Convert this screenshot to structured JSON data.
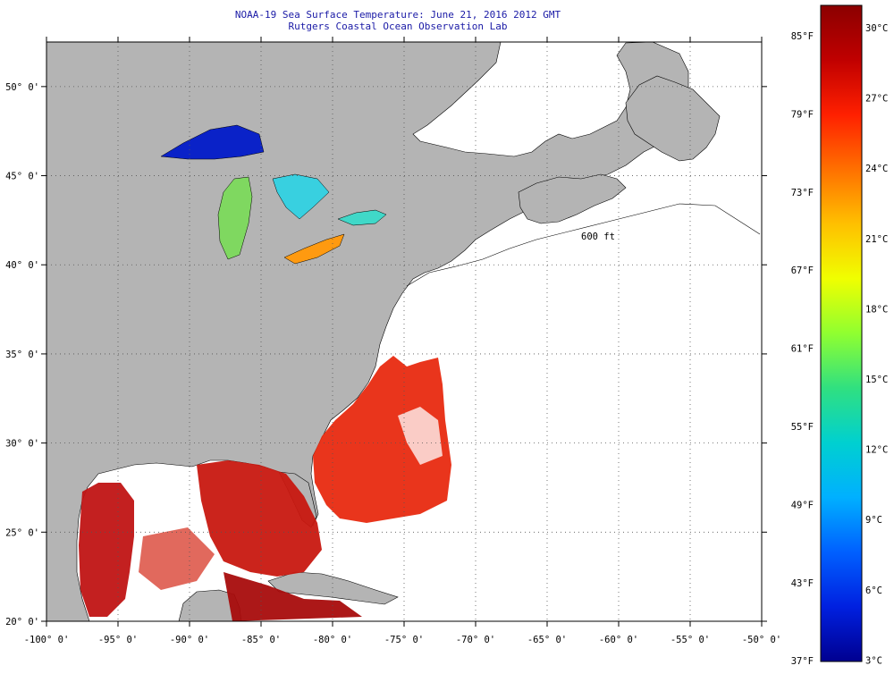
{
  "header": {
    "title_line1": "NOAA-19 Sea Surface Temperature:  June 21, 2016 2012 GMT",
    "title_line2": "Rutgers Coastal Ocean Observation Lab"
  },
  "map": {
    "lon_range": [
      -100,
      -50
    ],
    "lat_range": [
      20,
      52.5
    ],
    "lon_labels": [
      "-100° 0'",
      "-95° 0'",
      "-90° 0'",
      "-85° 0'",
      "-80° 0'",
      "-75° 0'",
      "-70° 0'",
      "-65° 0'",
      "-60° 0'",
      "-55° 0'",
      "-50° 0'"
    ],
    "lat_labels": [
      "20° 0'",
      "25° 0'",
      "30° 0'",
      "35° 0'",
      "40° 0'",
      "45° 0'",
      "50° 0'"
    ],
    "land_color": "#b4b4b4",
    "nodata_color": "#ffffff",
    "isobath_label": "600 ft"
  },
  "colorbar": {
    "fahrenheit_labels": [
      "85°F",
      "79°F",
      "73°F",
      "67°F",
      "61°F",
      "55°F",
      "49°F",
      "43°F",
      "37°F"
    ],
    "celsius_labels": [
      "30°C",
      "27°C",
      "24°C",
      "21°C",
      "18°C",
      "15°C",
      "12°C",
      "9°C",
      "6°C",
      "3°C"
    ],
    "colors": [
      "#8b0000",
      "#c00000",
      "#ff2000",
      "#ff7000",
      "#ffc000",
      "#f0ff00",
      "#90ff30",
      "#30e080",
      "#00d0d0",
      "#00b0ff",
      "#0060ff",
      "#0020e0",
      "#000090"
    ]
  }
}
